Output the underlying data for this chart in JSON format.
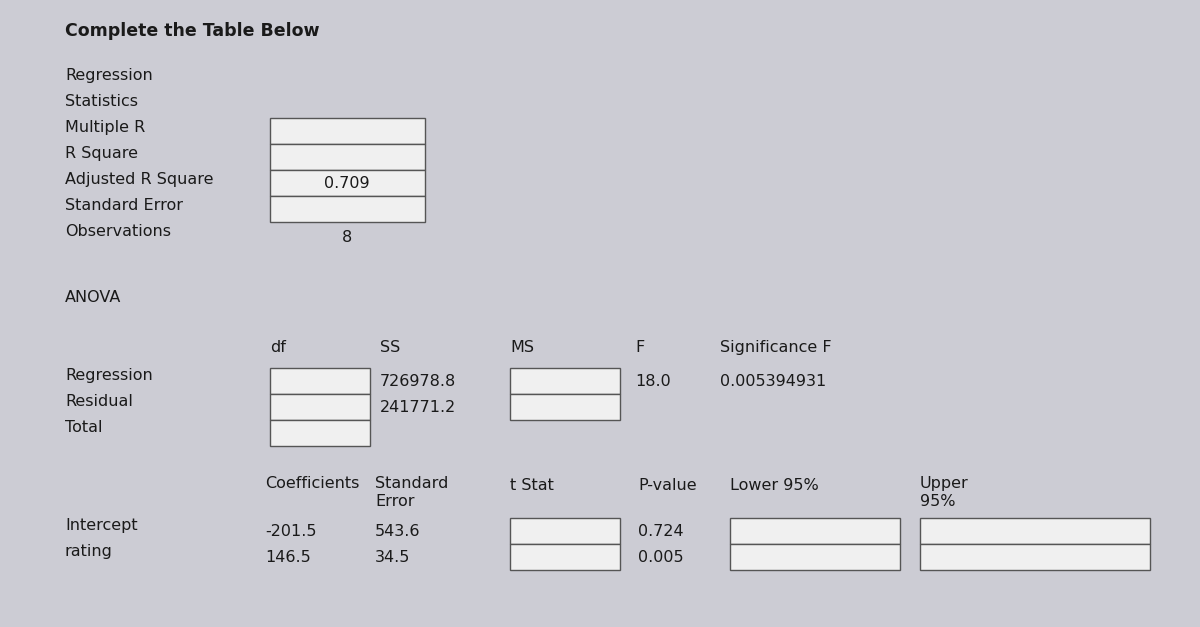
{
  "title": "Complete the Table Below",
  "bg_color": "#ccccd4",
  "text_color": "#1a1a1a",
  "box_facecolor": "#f0f0f0",
  "box_edgecolor": "#555555",
  "font_size": 11.5,
  "title_font_size": 12.5,
  "reg_stats_rows": [
    "Regression",
    "Statistics",
    "Multiple R",
    "R Square",
    "Adjusted R Square",
    "Standard Error",
    "Observations"
  ],
  "adjusted_r_square_val": "0.709",
  "observations_val": "8",
  "anova_label": "ANOVA",
  "anova_col_headers": [
    "df",
    "SS",
    "MS",
    "F",
    "Significance F"
  ],
  "anova_rows": [
    "Regression",
    "Residual",
    "Total"
  ],
  "anova_ss": [
    "726978.8",
    "241771.2"
  ],
  "anova_f_val": "18.0",
  "anova_sig_f": "0.005394931",
  "coeff_col_headers_line1": [
    "Coefficients",
    "Standard",
    "t Stat",
    "P-value",
    "Lower 95%",
    "Upper"
  ],
  "coeff_col_headers_line2": [
    "",
    "Error",
    "",
    "",
    "",
    "95%"
  ],
  "coeff_rows": [
    "Intercept",
    "rating"
  ],
  "coeff_vals": [
    "-201.5",
    "146.5"
  ],
  "std_err_vals": [
    "543.6",
    "34.5"
  ],
  "p_vals": [
    "0.724",
    "0.005"
  ]
}
